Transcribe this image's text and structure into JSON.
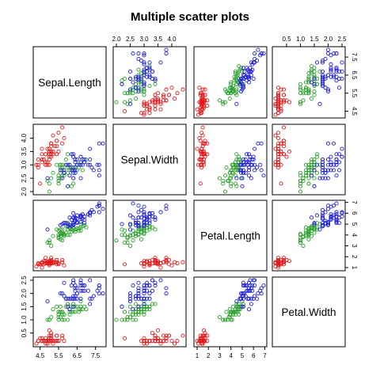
{
  "chart_data": {
    "type": "scatter",
    "kind": "scatterplot-matrix",
    "title": "Multiple scatter plots",
    "grid": false,
    "legend": "none",
    "variables": [
      "Sepal.Length",
      "Sepal.Width",
      "Petal.Length",
      "Petal.Width"
    ],
    "ranges": [
      [
        4.3,
        7.9
      ],
      [
        2.0,
        4.4
      ],
      [
        1.0,
        6.9
      ],
      [
        0.1,
        2.5
      ]
    ],
    "ticks": [
      [
        4.5,
        5.5,
        6.5,
        7.5
      ],
      [
        2.0,
        2.5,
        3.0,
        3.5,
        4.0
      ],
      [
        1,
        2,
        3,
        4,
        5,
        6,
        7
      ],
      [
        0.5,
        1.0,
        1.5,
        2.0,
        2.5
      ]
    ],
    "tick_labels": [
      [
        "4.5",
        "5.5",
        "6.5",
        "7.5"
      ],
      [
        "2.0",
        "2.5",
        "3.0",
        "3.5",
        "4.0"
      ],
      [
        "1",
        "2",
        "3",
        "4",
        "5",
        "6",
        "7"
      ],
      [
        "0.5",
        "1.0",
        "1.5",
        "2.0",
        "2.5"
      ]
    ],
    "point_style": "open-circle",
    "series": [
      {
        "color": "#e31a1c",
        "points": [
          [
            5.1,
            3.5,
            1.4,
            0.2
          ],
          [
            4.9,
            3.0,
            1.4,
            0.2
          ],
          [
            4.7,
            3.2,
            1.3,
            0.2
          ],
          [
            4.6,
            3.1,
            1.5,
            0.2
          ],
          [
            5.0,
            3.6,
            1.4,
            0.2
          ],
          [
            5.4,
            3.9,
            1.7,
            0.4
          ],
          [
            4.6,
            3.4,
            1.4,
            0.3
          ],
          [
            5.0,
            3.4,
            1.5,
            0.2
          ],
          [
            4.4,
            2.9,
            1.4,
            0.2
          ],
          [
            4.9,
            3.1,
            1.5,
            0.1
          ],
          [
            5.4,
            3.7,
            1.5,
            0.2
          ],
          [
            4.8,
            3.4,
            1.6,
            0.2
          ],
          [
            4.8,
            3.0,
            1.4,
            0.1
          ],
          [
            4.3,
            3.0,
            1.1,
            0.1
          ],
          [
            5.8,
            4.0,
            1.2,
            0.2
          ],
          [
            5.7,
            4.4,
            1.5,
            0.4
          ],
          [
            5.4,
            3.9,
            1.3,
            0.4
          ],
          [
            5.1,
            3.5,
            1.4,
            0.3
          ],
          [
            5.7,
            3.8,
            1.7,
            0.3
          ],
          [
            5.1,
            3.8,
            1.5,
            0.3
          ],
          [
            5.4,
            3.4,
            1.7,
            0.2
          ],
          [
            5.1,
            3.7,
            1.5,
            0.4
          ],
          [
            4.6,
            3.6,
            1.0,
            0.2
          ],
          [
            5.1,
            3.3,
            1.7,
            0.5
          ],
          [
            4.8,
            3.4,
            1.9,
            0.2
          ],
          [
            5.0,
            3.0,
            1.6,
            0.2
          ],
          [
            5.0,
            3.4,
            1.6,
            0.4
          ],
          [
            5.2,
            3.5,
            1.5,
            0.2
          ],
          [
            5.2,
            3.4,
            1.4,
            0.2
          ],
          [
            4.7,
            3.2,
            1.6,
            0.2
          ],
          [
            4.8,
            3.1,
            1.6,
            0.2
          ],
          [
            5.4,
            3.4,
            1.5,
            0.4
          ],
          [
            5.2,
            4.1,
            1.5,
            0.1
          ],
          [
            5.5,
            4.2,
            1.4,
            0.2
          ],
          [
            4.9,
            3.1,
            1.5,
            0.2
          ],
          [
            5.0,
            3.2,
            1.2,
            0.2
          ],
          [
            5.5,
            3.5,
            1.3,
            0.2
          ],
          [
            4.9,
            3.6,
            1.4,
            0.1
          ],
          [
            4.4,
            3.0,
            1.3,
            0.2
          ],
          [
            5.1,
            3.4,
            1.5,
            0.2
          ],
          [
            5.0,
            3.5,
            1.3,
            0.3
          ],
          [
            4.5,
            2.3,
            1.3,
            0.3
          ],
          [
            4.4,
            3.2,
            1.3,
            0.2
          ],
          [
            5.0,
            3.5,
            1.6,
            0.6
          ],
          [
            5.1,
            3.8,
            1.9,
            0.4
          ],
          [
            4.8,
            3.0,
            1.4,
            0.3
          ],
          [
            5.1,
            3.8,
            1.6,
            0.2
          ],
          [
            4.6,
            3.2,
            1.4,
            0.2
          ],
          [
            5.3,
            3.7,
            1.5,
            0.2
          ],
          [
            5.0,
            3.3,
            1.4,
            0.2
          ]
        ]
      },
      {
        "color": "#2ca02c",
        "points": [
          [
            7.0,
            3.2,
            4.7,
            1.4
          ],
          [
            6.4,
            3.2,
            4.5,
            1.5
          ],
          [
            6.9,
            3.1,
            4.9,
            1.5
          ],
          [
            5.5,
            2.3,
            4.0,
            1.3
          ],
          [
            6.5,
            2.8,
            4.6,
            1.5
          ],
          [
            5.7,
            2.8,
            4.5,
            1.3
          ],
          [
            6.3,
            3.3,
            4.7,
            1.6
          ],
          [
            4.9,
            2.4,
            3.3,
            1.0
          ],
          [
            6.6,
            2.9,
            4.6,
            1.3
          ],
          [
            5.2,
            2.7,
            3.9,
            1.4
          ],
          [
            5.0,
            2.0,
            3.5,
            1.0
          ],
          [
            5.9,
            3.0,
            4.2,
            1.5
          ],
          [
            6.0,
            2.2,
            4.0,
            1.0
          ],
          [
            6.1,
            2.9,
            4.7,
            1.4
          ],
          [
            5.6,
            2.9,
            3.6,
            1.3
          ],
          [
            6.7,
            3.1,
            4.4,
            1.4
          ],
          [
            5.6,
            3.0,
            4.5,
            1.5
          ],
          [
            5.8,
            2.7,
            4.1,
            1.0
          ],
          [
            6.2,
            2.2,
            4.5,
            1.5
          ],
          [
            5.6,
            2.5,
            3.9,
            1.1
          ],
          [
            5.9,
            3.2,
            4.8,
            1.8
          ],
          [
            6.1,
            2.8,
            4.0,
            1.3
          ],
          [
            6.3,
            2.5,
            4.9,
            1.5
          ],
          [
            6.1,
            2.8,
            4.7,
            1.2
          ],
          [
            6.4,
            2.9,
            4.3,
            1.3
          ],
          [
            6.6,
            3.0,
            4.4,
            1.4
          ],
          [
            6.8,
            2.8,
            4.8,
            1.4
          ],
          [
            6.7,
            3.0,
            5.0,
            1.7
          ],
          [
            6.0,
            2.9,
            4.5,
            1.5
          ],
          [
            5.7,
            2.6,
            3.5,
            1.0
          ],
          [
            5.5,
            2.4,
            3.8,
            1.1
          ],
          [
            5.5,
            2.4,
            3.7,
            1.0
          ],
          [
            5.8,
            2.7,
            3.9,
            1.2
          ],
          [
            6.0,
            2.7,
            5.1,
            1.6
          ],
          [
            5.4,
            3.0,
            4.5,
            1.5
          ],
          [
            6.0,
            3.4,
            4.5,
            1.6
          ],
          [
            6.7,
            3.1,
            4.7,
            1.5
          ],
          [
            6.3,
            2.3,
            4.4,
            1.3
          ],
          [
            5.6,
            3.0,
            4.1,
            1.3
          ],
          [
            5.5,
            2.5,
            4.0,
            1.3
          ],
          [
            5.5,
            2.6,
            4.4,
            1.2
          ],
          [
            6.1,
            3.0,
            4.6,
            1.4
          ],
          [
            5.8,
            2.6,
            4.0,
            1.2
          ],
          [
            5.0,
            2.3,
            3.3,
            1.0
          ],
          [
            5.6,
            2.7,
            4.2,
            1.3
          ],
          [
            5.7,
            3.0,
            4.2,
            1.2
          ],
          [
            5.7,
            2.9,
            4.2,
            1.3
          ],
          [
            6.2,
            2.9,
            4.3,
            1.3
          ],
          [
            5.1,
            2.5,
            3.0,
            1.1
          ],
          [
            5.7,
            2.8,
            4.1,
            1.3
          ]
        ]
      },
      {
        "color": "#1f1fd6",
        "points": [
          [
            6.3,
            3.3,
            6.0,
            2.5
          ],
          [
            5.8,
            2.7,
            5.1,
            1.9
          ],
          [
            7.1,
            3.0,
            5.9,
            2.1
          ],
          [
            6.3,
            2.9,
            5.6,
            1.8
          ],
          [
            6.5,
            3.0,
            5.8,
            2.2
          ],
          [
            7.6,
            3.0,
            6.6,
            2.1
          ],
          [
            4.9,
            2.5,
            4.5,
            1.7
          ],
          [
            7.3,
            2.9,
            6.3,
            1.8
          ],
          [
            6.7,
            2.5,
            5.8,
            1.8
          ],
          [
            7.2,
            3.6,
            6.1,
            2.5
          ],
          [
            6.5,
            3.2,
            5.1,
            2.0
          ],
          [
            6.4,
            2.7,
            5.3,
            1.9
          ],
          [
            6.8,
            3.0,
            5.5,
            2.1
          ],
          [
            5.7,
            2.5,
            5.0,
            2.0
          ],
          [
            5.8,
            2.8,
            5.1,
            2.4
          ],
          [
            6.4,
            3.2,
            5.3,
            2.3
          ],
          [
            6.5,
            3.0,
            5.5,
            1.8
          ],
          [
            7.7,
            3.8,
            6.7,
            2.2
          ],
          [
            7.7,
            2.6,
            6.9,
            2.3
          ],
          [
            6.0,
            2.2,
            5.0,
            1.5
          ],
          [
            6.9,
            3.2,
            5.7,
            2.3
          ],
          [
            5.6,
            2.8,
            4.9,
            2.0
          ],
          [
            7.7,
            2.8,
            6.7,
            2.0
          ],
          [
            6.3,
            2.7,
            4.9,
            1.8
          ],
          [
            6.7,
            3.3,
            5.7,
            2.1
          ],
          [
            7.2,
            3.2,
            6.0,
            1.8
          ],
          [
            6.2,
            2.8,
            4.8,
            1.8
          ],
          [
            6.1,
            3.0,
            4.9,
            1.8
          ],
          [
            6.4,
            2.8,
            5.6,
            2.1
          ],
          [
            7.2,
            3.0,
            5.8,
            1.6
          ],
          [
            7.4,
            2.8,
            6.1,
            1.9
          ],
          [
            7.9,
            3.8,
            6.4,
            2.0
          ],
          [
            6.4,
            2.8,
            5.6,
            2.2
          ],
          [
            6.3,
            2.8,
            5.1,
            1.5
          ],
          [
            6.1,
            2.6,
            5.6,
            1.4
          ],
          [
            7.7,
            3.0,
            6.1,
            2.3
          ],
          [
            6.3,
            3.4,
            5.6,
            2.4
          ],
          [
            6.4,
            3.1,
            5.5,
            1.8
          ],
          [
            6.0,
            3.0,
            4.8,
            1.8
          ],
          [
            6.9,
            3.1,
            5.4,
            2.1
          ],
          [
            6.7,
            3.1,
            5.6,
            2.4
          ],
          [
            6.9,
            3.1,
            5.1,
            2.3
          ],
          [
            5.8,
            2.7,
            5.1,
            1.9
          ],
          [
            6.8,
            3.2,
            5.9,
            2.3
          ],
          [
            6.7,
            3.3,
            5.7,
            2.5
          ],
          [
            6.7,
            3.0,
            5.2,
            2.3
          ],
          [
            6.3,
            2.5,
            5.0,
            1.9
          ],
          [
            6.5,
            3.0,
            5.2,
            2.0
          ],
          [
            6.2,
            3.4,
            5.4,
            2.3
          ],
          [
            5.9,
            3.0,
            5.1,
            1.8
          ]
        ]
      }
    ]
  }
}
